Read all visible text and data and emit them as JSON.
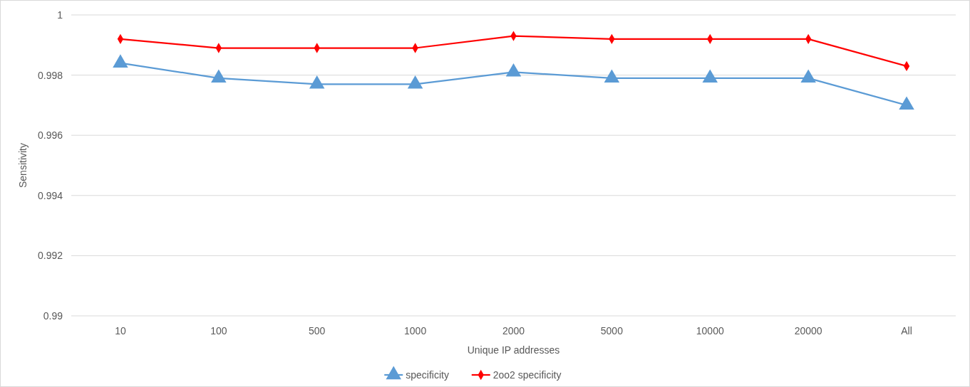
{
  "chart_data": {
    "type": "line",
    "xlabel": "Unique IP addresses",
    "ylabel": "Sensitivity",
    "categories": [
      "10",
      "100",
      "500",
      "1000",
      "2000",
      "5000",
      "10000",
      "20000",
      "All"
    ],
    "series": [
      {
        "name": "specificity",
        "color": "#5b9bd5",
        "marker": "triangle",
        "values": [
          0.9984,
          0.9979,
          0.9977,
          0.9977,
          0.9981,
          0.9979,
          0.9979,
          0.9979,
          0.997
        ]
      },
      {
        "name": "2oo2 specificity",
        "color": "#ff0000",
        "marker": "diamond",
        "values": [
          0.9992,
          0.9989,
          0.9989,
          0.9989,
          0.9993,
          0.9992,
          0.9992,
          0.9992,
          0.9983
        ]
      }
    ],
    "ylim": [
      0.99,
      1
    ],
    "yticks": [
      0.99,
      0.992,
      0.994,
      0.996,
      0.998,
      1
    ],
    "grid": "y",
    "legend": "bottom"
  }
}
